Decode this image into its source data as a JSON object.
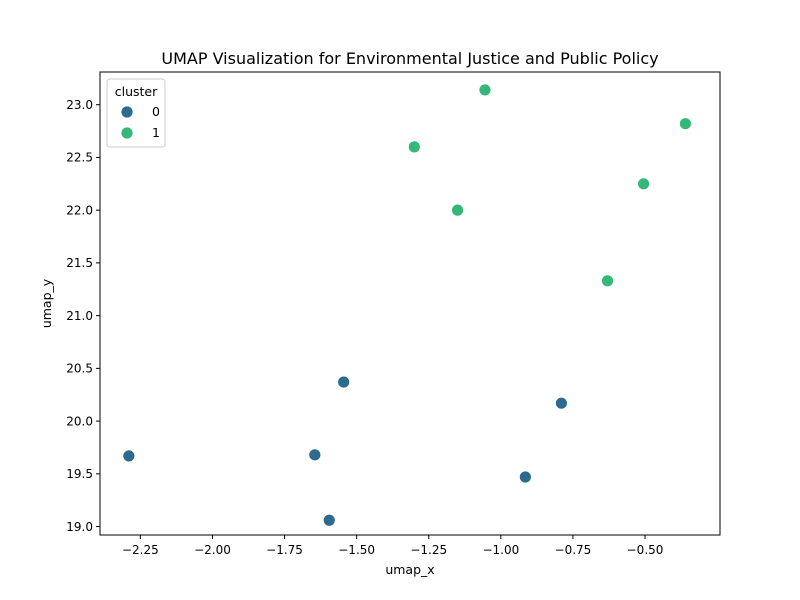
{
  "chart_data": {
    "type": "scatter",
    "title": "UMAP Visualization for Environmental Justice and Public Policy",
    "xlabel": "umap_x",
    "ylabel": "umap_y",
    "xlim": [
      -2.39,
      -0.24
    ],
    "ylim": [
      18.92,
      23.31
    ],
    "xticks": [
      -2.25,
      -2.0,
      -1.75,
      -1.5,
      -1.25,
      -1.0,
      -0.75,
      -0.5
    ],
    "xtick_labels": [
      "−2.25",
      "−2.00",
      "−1.75",
      "−1.50",
      "−1.25",
      "−1.00",
      "−0.75",
      "−0.50"
    ],
    "yticks": [
      19.0,
      19.5,
      20.0,
      20.5,
      21.0,
      21.5,
      22.0,
      22.5,
      23.0
    ],
    "ytick_labels": [
      "19.0",
      "19.5",
      "20.0",
      "20.5",
      "21.0",
      "21.5",
      "22.0",
      "22.5",
      "23.0"
    ],
    "grid": false,
    "legend": {
      "title": "cluster",
      "placement": "top-left",
      "entries": [
        {
          "label": "0",
          "color": "#2d6a8f"
        },
        {
          "label": "1",
          "color": "#35b779"
        }
      ]
    },
    "series": [
      {
        "name": "0",
        "color": "#2d6a8f",
        "points": [
          {
            "x": -2.29,
            "y": 19.67
          },
          {
            "x": -1.645,
            "y": 19.68
          },
          {
            "x": -1.545,
            "y": 20.37
          },
          {
            "x": -1.595,
            "y": 19.06
          },
          {
            "x": -0.915,
            "y": 19.47
          },
          {
            "x": -0.79,
            "y": 20.17
          }
        ]
      },
      {
        "name": "1",
        "color": "#35b779",
        "points": [
          {
            "x": -1.055,
            "y": 23.14
          },
          {
            "x": -1.3,
            "y": 22.6
          },
          {
            "x": -1.15,
            "y": 22.0
          },
          {
            "x": -0.63,
            "y": 21.33
          },
          {
            "x": -0.505,
            "y": 22.25
          },
          {
            "x": -0.36,
            "y": 22.82
          }
        ]
      }
    ]
  }
}
